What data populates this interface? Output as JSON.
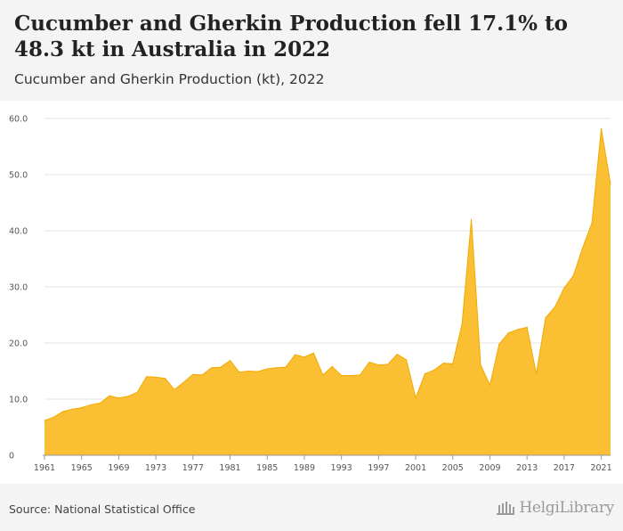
{
  "header": {
    "title": "Cucumber and Gherkin Production fell 17.1% to 48.3 kt in Australia in 2022",
    "subtitle": "Cucumber and Gherkin Production (kt), 2022"
  },
  "footer": {
    "source": "Source: National Statistical Office",
    "logo_text": "HelgiLibrary"
  },
  "colors": {
    "area_fill": "#fbbf33",
    "area_stroke": "#f2a900",
    "header_bg": "#f4f4f4",
    "grid": "#e3e3e3"
  },
  "chart_data": {
    "type": "area",
    "title": "",
    "xlabel": "",
    "ylabel": "",
    "ylim": [
      0,
      60
    ],
    "xlim": [
      1961,
      2022
    ],
    "grid": true,
    "y_ticks": [
      "0",
      "10.0",
      "20.0",
      "30.0",
      "40.0",
      "50.0",
      "60.0"
    ],
    "y_tick_values": [
      0,
      10,
      20,
      30,
      40,
      50,
      60
    ],
    "x_ticks": [
      "1961",
      "1965",
      "1969",
      "1973",
      "1977",
      "1981",
      "1985",
      "1989",
      "1993",
      "1997",
      "2001",
      "2005",
      "2009",
      "2013",
      "2017",
      "2021"
    ],
    "series": [
      {
        "x": [
          1961,
          1962,
          1963,
          1964,
          1965,
          1966,
          1967,
          1968,
          1969,
          1970,
          1971,
          1972,
          1973,
          1974,
          1975,
          1976,
          1977,
          1978,
          1979,
          1980,
          1981,
          1982,
          1983,
          1984,
          1985,
          1986,
          1987,
          1988,
          1989,
          1990,
          1991,
          1992,
          1993,
          1994,
          1995,
          1996,
          1997,
          1998,
          1999,
          2000,
          2001,
          2002,
          2003,
          2004,
          2005,
          2006,
          2007,
          2008,
          2009,
          2010,
          2011,
          2012,
          2013,
          2014,
          2015,
          2016,
          2017,
          2018,
          2019,
          2020,
          2021,
          2022
        ],
        "values": [
          6.2,
          6.8,
          7.8,
          8.2,
          8.5,
          9.0,
          9.3,
          10.6,
          10.2,
          10.5,
          11.2,
          14.0,
          13.9,
          13.7,
          11.7,
          13.0,
          14.4,
          14.3,
          15.6,
          15.7,
          16.9,
          14.8,
          15.0,
          14.9,
          15.4,
          15.6,
          15.7,
          17.9,
          17.5,
          18.2,
          14.3,
          15.8,
          14.2,
          14.2,
          14.3,
          16.6,
          16.1,
          16.2,
          18.0,
          17.0,
          10.2,
          14.5,
          15.2,
          16.4,
          16.3,
          23.4,
          42.0,
          16.1,
          12.5,
          19.8,
          21.8,
          22.4,
          22.8,
          14.5,
          24.5,
          26.4,
          29.8,
          32.0,
          37.0,
          41.4,
          58.2,
          48.3
        ]
      }
    ]
  }
}
